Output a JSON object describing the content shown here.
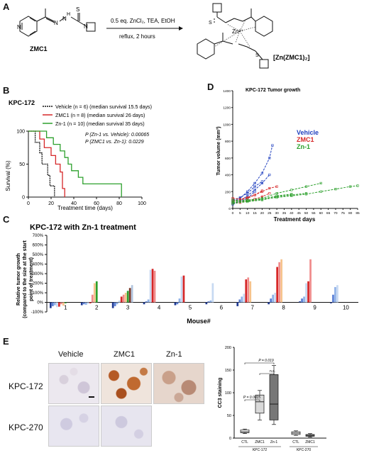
{
  "panelA": {
    "letter": "A",
    "conditions_line1": "0.5 eq. ZnCl₂, TEA, EtOH",
    "conditions_line2": "reflux, 2 hours",
    "reactant_label": "ZMC1",
    "product_label": "[Zn(ZMC1)₂]",
    "atoms": {
      "s": "S",
      "n": "N",
      "h": "H",
      "zn": "Zn²⁺"
    }
  },
  "panelB": {
    "letter": "B",
    "model": "KPC-172",
    "legend": [
      {
        "label": "Vehicle (n = 6) (median survival 15.5 days)",
        "color": "#111111"
      },
      {
        "label": "ZMC1 (n = 8) (median survival 26 days)",
        "color": "#d62728"
      },
      {
        "label": "Zn-1 (n = 10) (median survival 35 days)",
        "color": "#2ca02c"
      }
    ],
    "pvalue1": "P (Zn-1 vs. Vehicle): 0.00065",
    "pvalue2": "P (ZMC1 vs. Zn-1): 0.0229",
    "ylabel": "Survival (%)",
    "xlabel": "Treatment time (days)",
    "xticks": [
      "0",
      "20",
      "40",
      "60",
      "80",
      "100"
    ],
    "yticks": [
      "0",
      "50",
      "100"
    ]
  },
  "panelD": {
    "letter": "D",
    "title": "KPC-172 Tumor growth",
    "ylabel": "Tumor volume (mm³)",
    "xlabel": "Treatment days",
    "legend": [
      {
        "label": "Vehicle",
        "color": "#1f3fbf"
      },
      {
        "label": "ZMC1",
        "color": "#d62728"
      },
      {
        "label": "Zn-1",
        "color": "#2ca02c"
      }
    ],
    "yticks": [
      "0",
      "200",
      "400",
      "600",
      "800",
      "1000",
      "1200",
      "1400"
    ],
    "xticks": [
      "0",
      "5",
      "10",
      "15",
      "20",
      "25",
      "30",
      "35",
      "40",
      "45",
      "50",
      "55",
      "60",
      "65",
      "70",
      "75",
      "80",
      "85"
    ]
  },
  "panelC": {
    "letter": "C",
    "title": "KPC-172 with Zn-1 treatment",
    "ylabel_line1": "Relative tumor growth",
    "ylabel_line2": "(compared to the size at the start",
    "ylabel_line3": "point of treatment)",
    "xlabel": "Mouse#",
    "yticks": [
      "-100%",
      "0%",
      "100%",
      "200%",
      "300%",
      "400%",
      "500%",
      "600%",
      "700%"
    ],
    "mice": [
      "1",
      "2",
      "3",
      "4",
      "5",
      "6",
      "7",
      "8",
      "9",
      "10"
    ]
  },
  "panelE": {
    "letter": "E",
    "col_headers": [
      "Vehicle",
      "ZMC1",
      "Zn-1"
    ],
    "row_labels": [
      "KPC-172",
      "KPC-270"
    ],
    "box_ylabel": "CC3 staining",
    "box_yticks": [
      "0",
      "50",
      "100",
      "150",
      "200"
    ],
    "box_xticks": [
      "CTL",
      "ZMC1",
      "Zn-1",
      "CTL",
      "ZMC1"
    ],
    "group1": "KPC-172",
    "group2": "KPC-270",
    "p1": "P = 0.0015",
    "p2": "P = 0.019",
    "ns": "n.s."
  },
  "chart_data": [
    {
      "type": "line",
      "title": "",
      "xlabel": "Treatment time (days)",
      "ylabel": "Survival (%)",
      "xlim": [
        0,
        100
      ],
      "ylim": [
        0,
        100
      ],
      "series": [
        {
          "name": "Vehicle",
          "x": [
            0,
            4,
            6,
            8,
            10,
            12,
            14,
            15.5,
            17,
            19,
            21,
            23
          ],
          "y": [
            100,
            100,
            83,
            83,
            67,
            50,
            50,
            50,
            33,
            17,
            17,
            0
          ]
        },
        {
          "name": "ZMC1",
          "x": [
            0,
            8,
            10,
            14,
            20,
            24,
            26,
            28,
            30,
            32
          ],
          "y": [
            100,
            100,
            88,
            75,
            63,
            50,
            50,
            38,
            13,
            0
          ]
        },
        {
          "name": "Zn-1",
          "x": [
            0,
            12,
            16,
            22,
            28,
            32,
            35,
            38,
            44,
            48,
            80,
            82
          ],
          "y": [
            100,
            100,
            90,
            80,
            70,
            60,
            50,
            40,
            30,
            20,
            20,
            0
          ]
        }
      ]
    },
    {
      "type": "line",
      "title": "KPC-172 Tumor growth",
      "xlabel": "Treatment days",
      "ylabel": "Tumor volume (mm³)",
      "xlim": [
        0,
        85
      ],
      "ylim": [
        0,
        1400
      ],
      "series": [
        {
          "name": "Vehicle",
          "x": [
            0,
            5,
            10,
            15,
            20,
            25,
            27
          ],
          "y": [
            80,
            120,
            200,
            300,
            420,
            600,
            750
          ]
        },
        {
          "name": "Vehicle",
          "x": [
            0,
            5,
            10,
            15,
            20,
            25
          ],
          "y": [
            60,
            90,
            150,
            220,
            300,
            400
          ]
        },
        {
          "name": "Vehicle",
          "x": [
            0,
            5,
            10,
            15,
            20
          ],
          "y": [
            100,
            130,
            180,
            260,
            320
          ]
        },
        {
          "name": "Vehicle",
          "x": [
            0,
            5,
            10,
            15
          ],
          "y": [
            50,
            80,
            120,
            200
          ]
        },
        {
          "name": "ZMC1",
          "x": [
            0,
            5,
            10,
            15,
            20,
            25,
            30
          ],
          "y": [
            90,
            100,
            120,
            160,
            200,
            240,
            260
          ]
        },
        {
          "name": "ZMC1",
          "x": [
            0,
            5,
            10,
            15,
            20,
            25
          ],
          "y": [
            60,
            70,
            90,
            110,
            140,
            180
          ]
        },
        {
          "name": "ZMC1",
          "x": [
            0,
            5,
            10,
            15,
            20
          ],
          "y": [
            120,
            110,
            130,
            160,
            210
          ]
        },
        {
          "name": "Zn-1",
          "x": [
            0,
            10,
            20,
            30,
            40,
            50,
            60,
            70,
            80,
            85
          ],
          "y": [
            70,
            90,
            110,
            130,
            150,
            170,
            200,
            230,
            260,
            270
          ]
        },
        {
          "name": "Zn-1",
          "x": [
            0,
            10,
            20,
            30,
            40,
            50,
            60
          ],
          "y": [
            80,
            100,
            120,
            180,
            220,
            260,
            300
          ]
        },
        {
          "name": "Zn-1",
          "x": [
            0,
            10,
            20,
            30,
            40,
            50
          ],
          "y": [
            60,
            80,
            100,
            140,
            160,
            180
          ]
        },
        {
          "name": "Zn-1",
          "x": [
            0,
            10,
            20,
            30,
            40
          ],
          "y": [
            100,
            90,
            110,
            150,
            170
          ]
        }
      ]
    },
    {
      "type": "bar",
      "title": "KPC-172 with Zn-1 treatment",
      "xlabel": "Mouse#",
      "ylabel": "Relative tumor growth (compared to the size at the start point of treatment)",
      "ylim": [
        -100,
        700
      ],
      "categories": [
        "1",
        "2",
        "3",
        "4",
        "5",
        "6",
        "7",
        "8",
        "9",
        "10"
      ],
      "values_per_mouse": [
        [
          -60,
          -40,
          -30,
          -50,
          -45,
          -20,
          -35,
          -10
        ],
        [
          -30,
          -20,
          -25,
          -15,
          -10,
          80,
          200,
          220
        ],
        [
          -60,
          -40,
          -20,
          20,
          60,
          80,
          100,
          120,
          150,
          180
        ],
        [
          -20,
          10,
          30,
          340,
          350,
          330
        ],
        [
          -30,
          -20,
          40,
          270,
          280
        ],
        [
          -20,
          10,
          20,
          200
        ],
        [
          -40,
          30,
          60,
          90,
          240,
          260,
          220
        ],
        [
          -20,
          40,
          80,
          100,
          370,
          420,
          450
        ],
        [
          10,
          40,
          60,
          200,
          220,
          450
        ],
        [
          -10,
          80,
          160,
          180
        ]
      ]
    },
    {
      "type": "bar",
      "title": "",
      "ylabel": "CC3 staining",
      "ylim": [
        0,
        200
      ],
      "categories": [
        "CTL",
        "ZMC1",
        "Zn-1",
        "CTL",
        "ZMC1"
      ],
      "box_stats": [
        {
          "min": 10,
          "q1": 12,
          "median": 14,
          "q3": 18,
          "max": 20
        },
        {
          "min": 40,
          "q1": 55,
          "median": 80,
          "q3": 95,
          "max": 105
        },
        {
          "min": 30,
          "q1": 40,
          "median": 75,
          "q3": 140,
          "max": 160
        },
        {
          "min": 6,
          "q1": 8,
          "median": 11,
          "q3": 14,
          "max": 16
        },
        {
          "min": 2,
          "q1": 4,
          "median": 6,
          "q3": 8,
          "max": 10
        }
      ]
    }
  ]
}
